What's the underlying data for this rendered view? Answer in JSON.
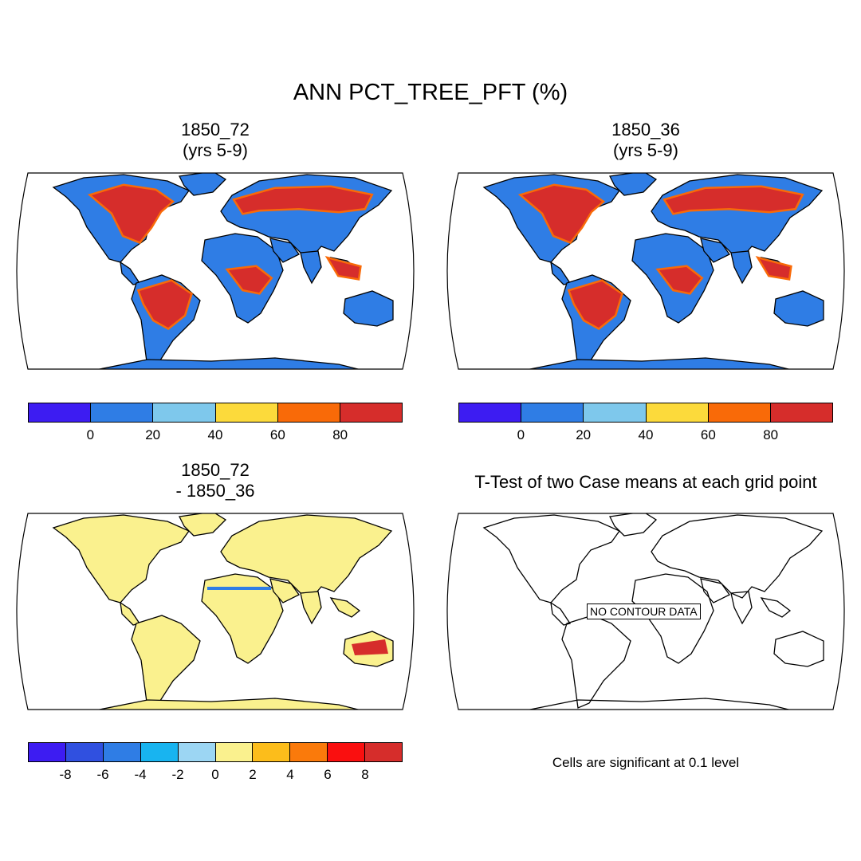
{
  "title": "ANN PCT_TREE_PFT (%)",
  "panels": {
    "top_left": {
      "line1": "1850_72",
      "line2": "(yrs 5-9)"
    },
    "top_right": {
      "line1": "1850_36",
      "line2": "(yrs 5-9)"
    },
    "bottom_left": {
      "line1": "1850_72",
      "line2": "- 1850_36"
    },
    "bottom_right": {
      "line1": "T-Test of two Case means at each grid point",
      "no_data": "NO CONTOUR DATA",
      "note": "Cells are significant at 0.1 level"
    }
  },
  "colorbar_pct": {
    "colors": [
      "#3d1cf2",
      "#2f7de5",
      "#7ec8ec",
      "#fcda3b",
      "#f96a08",
      "#d62d2b"
    ],
    "ticks": [
      "0",
      "20",
      "40",
      "60",
      "80"
    ]
  },
  "colorbar_diff": {
    "colors": [
      "#3d1cf2",
      "#3050e0",
      "#2f7de5",
      "#18b4f0",
      "#9cd6f3",
      "#faf18e",
      "#fcbd1b",
      "#fa7a0b",
      "#fa0f0f",
      "#d62d2b"
    ],
    "ticks": [
      "-8",
      "-6",
      "-4",
      "-2",
      "0",
      "2",
      "4",
      "6",
      "8"
    ]
  },
  "map_colors": {
    "ocean": "#ffffff",
    "land_base": "#2f7de5",
    "forest": "#d62d2b",
    "forest_edge": "#f96a08",
    "diff_land": "#faf18e",
    "diff_pos": "#d62d2b",
    "diff_neg": "#2f7de5"
  }
}
